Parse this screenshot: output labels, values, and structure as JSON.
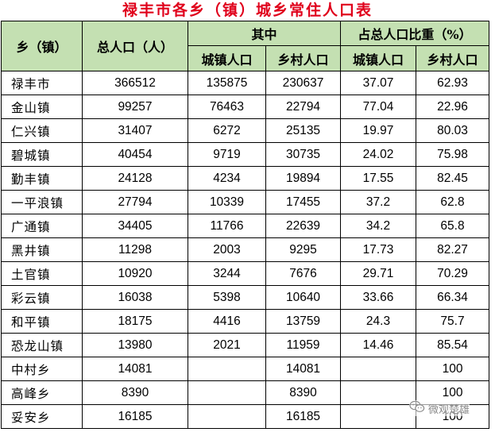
{
  "title": "禄丰市各乡（镇）城乡常住人口表",
  "headers": {
    "township": "乡（镇）",
    "total": "总人口（人）",
    "of_which": "其中",
    "share": "占总人口比重（%）",
    "urban": "城镇人口",
    "rural": "乡村人口",
    "urban_pct": "城镇人口",
    "rural_pct": "乡村人口"
  },
  "rows": [
    {
      "name": "禄丰市",
      "total": "366512",
      "urban": "135875",
      "rural": "230637",
      "urban_pct": "37.07",
      "rural_pct": "62.93"
    },
    {
      "name": "金山镇",
      "total": "99257",
      "urban": "76463",
      "rural": "22794",
      "urban_pct": "77.04",
      "rural_pct": "22.96"
    },
    {
      "name": "仁兴镇",
      "total": "31407",
      "urban": "6272",
      "rural": "25135",
      "urban_pct": "19.97",
      "rural_pct": "80.03"
    },
    {
      "name": "碧城镇",
      "total": "40454",
      "urban": "9719",
      "rural": "30735",
      "urban_pct": "24.02",
      "rural_pct": "75.98"
    },
    {
      "name": "勤丰镇",
      "total": "24128",
      "urban": "4234",
      "rural": "19894",
      "urban_pct": "17.55",
      "rural_pct": "82.45"
    },
    {
      "name": "一平浪镇",
      "total": "27794",
      "urban": "10339",
      "rural": "17455",
      "urban_pct": "37.2",
      "rural_pct": "62.8"
    },
    {
      "name": "广通镇",
      "total": "34405",
      "urban": "11766",
      "rural": "22639",
      "urban_pct": "34.2",
      "rural_pct": "65.8"
    },
    {
      "name": "黑井镇",
      "total": "11298",
      "urban": "2003",
      "rural": "9295",
      "urban_pct": "17.73",
      "rural_pct": "82.27"
    },
    {
      "name": "土官镇",
      "total": "10920",
      "urban": "3244",
      "rural": "7676",
      "urban_pct": "29.71",
      "rural_pct": "70.29"
    },
    {
      "name": "彩云镇",
      "total": "16038",
      "urban": "5398",
      "rural": "10640",
      "urban_pct": "33.66",
      "rural_pct": "66.34"
    },
    {
      "name": "和平镇",
      "total": "18175",
      "urban": "4416",
      "rural": "13759",
      "urban_pct": "24.3",
      "rural_pct": "75.7"
    },
    {
      "name": "恐龙山镇",
      "total": "13980",
      "urban": "2021",
      "rural": "11959",
      "urban_pct": "14.46",
      "rural_pct": "85.54"
    },
    {
      "name": "中村乡",
      "total": "14081",
      "urban": "",
      "rural": "14081",
      "urban_pct": "",
      "rural_pct": "100"
    },
    {
      "name": "高峰乡",
      "total": "8390",
      "urban": "",
      "rural": "8390",
      "urban_pct": "",
      "rural_pct": "100"
    },
    {
      "name": "妥安乡",
      "total": "16185",
      "urban": "",
      "rural": "16185",
      "urban_pct": "",
      "rural_pct": "100"
    }
  ],
  "watermark": {
    "text": "微观楚雄",
    "icon": "wechat-icon"
  }
}
